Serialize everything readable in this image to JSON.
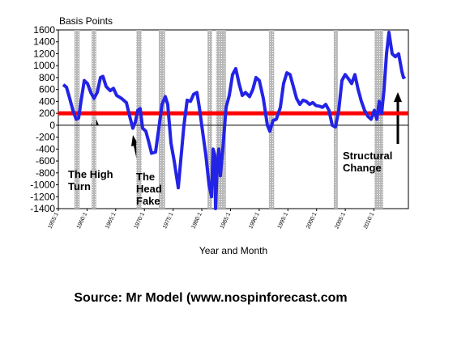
{
  "chart_data": {
    "type": "line",
    "y_label": "Basis Points",
    "x_label": "Year and Month",
    "source": "Source: Mr Model (www.nospinforecast.com",
    "annotations": [
      "The High Turn",
      "The Head Fake",
      "Structural Change"
    ],
    "xlim": [
      1955,
      2016
    ],
    "xticks": [
      {
        "value": 1955,
        "label": "1955:1"
      },
      {
        "value": 1960,
        "label": "1960:1"
      },
      {
        "value": 1965,
        "label": "1965:1"
      },
      {
        "value": 1970,
        "label": "1970:1"
      },
      {
        "value": 1975,
        "label": "1975:1"
      },
      {
        "value": 1980,
        "label": "1980:1"
      },
      {
        "value": 1985,
        "label": "1985:1"
      },
      {
        "value": 1990,
        "label": "1990:1"
      },
      {
        "value": 1995,
        "label": "1995:1"
      },
      {
        "value": 2000,
        "label": "2000:1"
      },
      {
        "value": 2005,
        "label": "2005:1"
      },
      {
        "value": 2010,
        "label": "2010:1"
      }
    ],
    "ylim": [
      -1400,
      1600
    ],
    "yticks": [
      -1400,
      -1200,
      -1000,
      -800,
      -600,
      -400,
      -200,
      0,
      200,
      400,
      600,
      800,
      1000,
      1200,
      1400,
      1600
    ],
    "reference_line": {
      "value": 200,
      "color": "#ff0000"
    },
    "shaded_periods": [
      [
        1957.8,
        1958.7
      ],
      [
        1960.8,
        1961.6
      ],
      [
        1968.6,
        1969.5
      ],
      [
        1972.5,
        1973.6
      ],
      [
        1981.0,
        1981.8
      ],
      [
        1982.5,
        1984.2
      ],
      [
        1991.7,
        1992.6
      ],
      [
        2003.0,
        2003.7
      ],
      [
        2010.1,
        2011.6
      ]
    ],
    "shade_color": "#b8b8b8",
    "color": "#2323e6",
    "x": [
      1955.85,
      1956.41,
      1956.98,
      1957.54,
      1958.11,
      1958.53,
      1958.95,
      1959.52,
      1960.08,
      1960.65,
      1961.21,
      1961.78,
      1962.34,
      1962.77,
      1963.33,
      1964.04,
      1964.6,
      1965.17,
      1966.01,
      1966.86,
      1967.43,
      1967.99,
      1968.41,
      1968.84,
      1969.26,
      1969.68,
      1970.25,
      1970.81,
      1971.24,
      1971.94,
      1972.51,
      1973.07,
      1973.64,
      1974.06,
      1974.63,
      1975.19,
      1975.9,
      1976.32,
      1976.89,
      1977.45,
      1978.02,
      1978.58,
      1979.15,
      1979.57,
      1980.13,
      1980.7,
      1981.26,
      1981.69,
      1981.97,
      1982.25,
      1982.39,
      1982.68,
      1982.96,
      1983.24,
      1983.66,
      1984.23,
      1984.79,
      1985.36,
      1985.92,
      1986.49,
      1987.05,
      1987.62,
      1988.32,
      1988.89,
      1989.45,
      1990.02,
      1990.72,
      1991.43,
      1991.85,
      1992.42,
      1992.98,
      1993.69,
      1994.25,
      1994.82,
      1995.38,
      1995.95,
      1996.51,
      1997.08,
      1997.64,
      1998.21,
      1998.77,
      1999.34,
      1999.9,
      2000.47,
      2001.03,
      2001.6,
      2002.16,
      2002.73,
      2003.29,
      2003.86,
      2004.42,
      2004.98,
      2005.55,
      2006.11,
      2006.68,
      2007.24,
      2007.81,
      2008.37,
      2008.94,
      2009.5,
      2010.07,
      2010.49,
      2010.92,
      2011.34,
      2011.76,
      2012.19,
      2012.61,
      2013.17,
      2013.74,
      2014.3,
      2014.87,
      2015.15,
      2015.43
    ],
    "values": [
      680,
      640,
      450,
      250,
      100,
      120,
      400,
      750,
      700,
      550,
      450,
      550,
      800,
      820,
      650,
      580,
      620,
      500,
      450,
      380,
      150,
      -50,
      50,
      250,
      280,
      -50,
      -100,
      -300,
      -470,
      -450,
      -50,
      350,
      480,
      350,
      -300,
      -600,
      -1050,
      -600,
      0,
      420,
      400,
      520,
      550,
      300,
      -100,
      -500,
      -1000,
      -1200,
      -400,
      -500,
      -1400,
      -700,
      -400,
      -850,
      -400,
      300,
      500,
      850,
      950,
      700,
      500,
      550,
      480,
      600,
      800,
      750,
      450,
      0,
      -100,
      80,
      100,
      300,
      700,
      880,
      850,
      650,
      450,
      350,
      420,
      400,
      350,
      380,
      330,
      320,
      300,
      350,
      250,
      0,
      -30,
      250,
      750,
      850,
      780,
      700,
      850,
      600,
      400,
      250,
      150,
      100,
      250,
      100,
      400,
      200,
      600,
      1200,
      1560,
      1200,
      1150,
      1200,
      900,
      800,
      820
    ]
  }
}
